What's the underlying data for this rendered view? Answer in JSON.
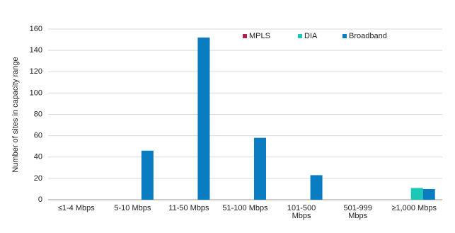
{
  "chart_data": {
    "type": "bar",
    "y_label": "Number of sites in capacity range",
    "categories": [
      "≤1-4 Mbps",
      "5-10 Mbps",
      "11-50 Mbps",
      "51-100 Mbps",
      "101-500\nMbps",
      "501-999\nMbps",
      "≥1,000 Mbps"
    ],
    "series": [
      {
        "name": "MPLS",
        "color": "#b01f4f",
        "values": [
          0,
          0,
          0,
          0,
          0,
          0,
          0
        ]
      },
      {
        "name": "DIA",
        "color": "#1cc7b8",
        "values": [
          0,
          0,
          0,
          0,
          0,
          0,
          11
        ]
      },
      {
        "name": "Broadband",
        "color": "#0a7dc2",
        "values": [
          0,
          46,
          152,
          58,
          23,
          0,
          10
        ]
      }
    ],
    "ylim": [
      0,
      160
    ],
    "yticks": [
      0,
      20,
      40,
      60,
      80,
      100,
      120,
      140,
      160
    ],
    "grid": true,
    "legend": "top-right"
  }
}
